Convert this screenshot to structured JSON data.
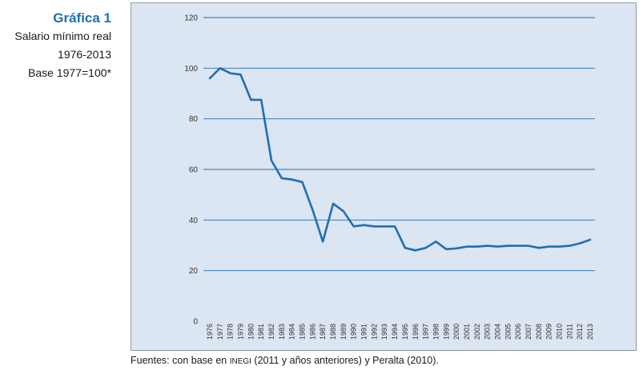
{
  "caption": {
    "title": "Gráfica 1",
    "line1": "Salario mínimo real",
    "line2": "1976-2013",
    "line3": "Base 1977=100*"
  },
  "source": {
    "prefix": "Fuentes: con base en ",
    "org": "INEGI",
    "suffix": " (2011 y años anteriores) y Peralta (2010)."
  },
  "colors": {
    "line": "#1f6fb2",
    "panel": "#dce5f2",
    "grid": "#1f6fb2"
  },
  "chart_data": {
    "type": "line",
    "title": "",
    "xlabel": "",
    "ylabel": "",
    "ylim": [
      0,
      120
    ],
    "yticks": [
      0,
      20,
      40,
      60,
      80,
      100,
      120
    ],
    "grid": true,
    "categories": [
      "1976",
      "1977",
      "1978",
      "1979",
      "1980",
      "1981",
      "1982",
      "1983",
      "1984",
      "1985",
      "1986",
      "1987",
      "1988",
      "1989",
      "1990",
      "1991",
      "1992",
      "1993",
      "1994",
      "1995",
      "1996",
      "1997",
      "1998",
      "1999",
      "2000",
      "2001",
      "2002",
      "2003",
      "2004",
      "2005",
      "2006",
      "2007",
      "2008",
      "2009",
      "2010",
      "2011",
      "2012",
      "2013"
    ],
    "series": [
      {
        "values": [
          96.0,
          100.0,
          98.0,
          97.5,
          87.5,
          87.5,
          63.5,
          56.5,
          56.0,
          55.0,
          44.0,
          31.5,
          46.5,
          43.5,
          37.5,
          38.0,
          37.5,
          37.5,
          37.5,
          29.0,
          28.0,
          29.0,
          31.5,
          28.5,
          28.8,
          29.5,
          29.5,
          29.8,
          29.5,
          29.8,
          29.8,
          29.8,
          29.0,
          29.5,
          29.5,
          29.8,
          30.8,
          32.2
        ]
      }
    ]
  }
}
